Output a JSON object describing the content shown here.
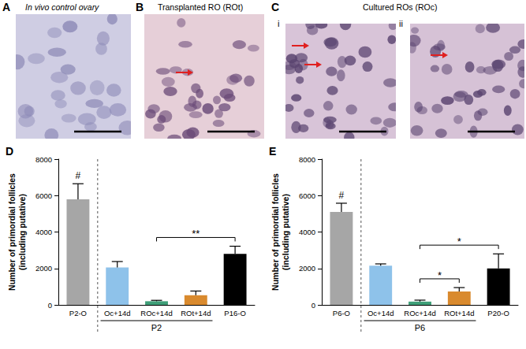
{
  "panels": [
    {
      "letter": "A",
      "title": "In vivo control ovary"
    },
    {
      "letter": "B",
      "title": "Transplanted RO (ROt)"
    },
    {
      "letter": "C",
      "title": "Cultured ROs (ROc)",
      "parts": [
        "i",
        "ii"
      ]
    }
  ],
  "chart_data": [
    {
      "type": "bar",
      "title": "D",
      "ylabel": "Number of primordial follicles\n(including putative)",
      "categories": [
        "P2-O",
        "Oc+14d",
        "ROc+14d",
        "ROt+14d",
        "P16-O"
      ],
      "values": [
        5800,
        2050,
        200,
        530,
        2800
      ],
      "errors": [
        850,
        330,
        50,
        230,
        420
      ],
      "colors": [
        "#a6a6a6",
        "#8ec2ea",
        "#3f9f78",
        "#d98a2e",
        "#000000"
      ],
      "ylim": [
        0,
        8000
      ],
      "yticks": [
        0,
        2000,
        4000,
        6000,
        8000
      ],
      "grid": false,
      "annotations": [
        {
          "category": "P2-O",
          "text": "#"
        }
      ],
      "comparisons": [
        {
          "from": "ROc+14d",
          "to": "P16-O",
          "label": "**"
        }
      ],
      "groups": [
        {
          "label": "P2",
          "from": "Oc+14d",
          "to": "ROt+14d"
        }
      ]
    },
    {
      "type": "bar",
      "title": "E",
      "ylabel": "Number of primordial follicles\n(including putative)",
      "categories": [
        "P6-O",
        "Oc+14d",
        "ROc+14d",
        "ROt+14d",
        "P20-O"
      ],
      "values": [
        5100,
        2150,
        180,
        730,
        2000
      ],
      "errors": [
        480,
        100,
        80,
        220,
        800
      ],
      "colors": [
        "#a6a6a6",
        "#8ec2ea",
        "#3f9f78",
        "#d98a2e",
        "#000000"
      ],
      "ylim": [
        0,
        8000
      ],
      "yticks": [
        0,
        2000,
        4000,
        6000,
        8000
      ],
      "grid": false,
      "annotations": [
        {
          "category": "P6-O",
          "text": "#"
        }
      ],
      "comparisons": [
        {
          "from": "ROc+14d",
          "to": "ROt+14d",
          "label": "*"
        },
        {
          "from": "ROc+14d",
          "to": "P20-O",
          "label": "*"
        }
      ],
      "groups": [
        {
          "label": "P6",
          "from": "Oc+14d",
          "to": "ROt+14d"
        }
      ]
    }
  ]
}
